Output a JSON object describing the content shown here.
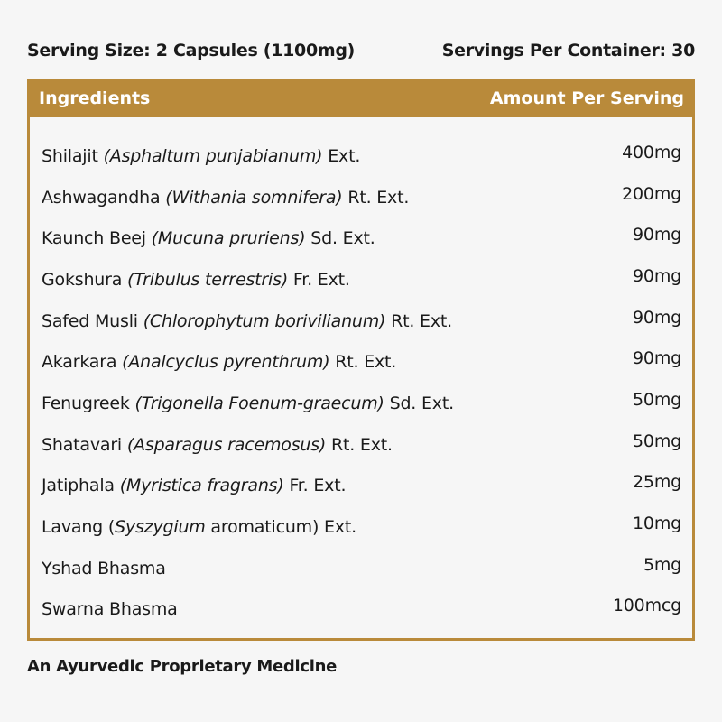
{
  "serving_size": "Serving Size: 2 Capsules (1100mg)",
  "servings_per_container": "Servings Per Container: 30",
  "table": {
    "header": {
      "ingredients": "Ingredients",
      "amount": "Amount Per Serving"
    },
    "rows": [
      {
        "segments": [
          {
            "t": "Shilajit ",
            "i": false
          },
          {
            "t": "(Asphaltum punjabianum)",
            "i": true
          },
          {
            "t": " Ext.",
            "i": false
          }
        ],
        "amount": "400mg"
      },
      {
        "segments": [
          {
            "t": "Ashwagandha ",
            "i": false
          },
          {
            "t": "(Withania somnifera)",
            "i": true
          },
          {
            "t": " Rt. Ext.",
            "i": false
          }
        ],
        "amount": "200mg"
      },
      {
        "segments": [
          {
            "t": "Kaunch Beej ",
            "i": false
          },
          {
            "t": "(Mucuna pruriens)",
            "i": true
          },
          {
            "t": " Sd. Ext.",
            "i": false
          }
        ],
        "amount": "90mg"
      },
      {
        "segments": [
          {
            "t": "Gokshura ",
            "i": false
          },
          {
            "t": "(Tribulus terrestris)",
            "i": true
          },
          {
            "t": " Fr. Ext.",
            "i": false
          }
        ],
        "amount": "90mg"
      },
      {
        "segments": [
          {
            "t": "Safed Musli ",
            "i": false
          },
          {
            "t": "(Chlorophytum borivilianum)",
            "i": true
          },
          {
            "t": " Rt. Ext.",
            "i": false
          }
        ],
        "amount": "90mg"
      },
      {
        "segments": [
          {
            "t": "Akarkara ",
            "i": false
          },
          {
            "t": "(Analcyclus pyrenthrum)",
            "i": true
          },
          {
            "t": " Rt. Ext.",
            "i": false
          }
        ],
        "amount": "90mg"
      },
      {
        "segments": [
          {
            "t": "Fenugreek ",
            "i": false
          },
          {
            "t": "(Trigonella Foenum-graecum)",
            "i": true
          },
          {
            "t": " Sd. Ext.",
            "i": false
          }
        ],
        "amount": "50mg"
      },
      {
        "segments": [
          {
            "t": "Shatavari ",
            "i": false
          },
          {
            "t": "(Asparagus racemosus)",
            "i": true
          },
          {
            "t": " Rt. Ext.",
            "i": false
          }
        ],
        "amount": "50mg"
      },
      {
        "segments": [
          {
            "t": "Jatiphala ",
            "i": false
          },
          {
            "t": "(Myristica fragrans)",
            "i": true
          },
          {
            "t": " Fr. Ext.",
            "i": false
          }
        ],
        "amount": "25mg"
      },
      {
        "segments": [
          {
            "t": "Lavang (",
            "i": false
          },
          {
            "t": "Syszygium",
            "i": true
          },
          {
            "t": " aromaticum) Ext.",
            "i": false
          }
        ],
        "amount": "10mg"
      },
      {
        "segments": [
          {
            "t": "Yshad Bhasma",
            "i": false
          }
        ],
        "amount": "5mg"
      },
      {
        "segments": [
          {
            "t": "Swarna Bhasma",
            "i": false
          }
        ],
        "amount": "100mcg"
      }
    ]
  },
  "footer": "An Ayurvedic Proprietary Medicine",
  "colors": {
    "accent": "#b98a3a",
    "background": "#f6f6f6",
    "text": "#1a1a1a"
  }
}
